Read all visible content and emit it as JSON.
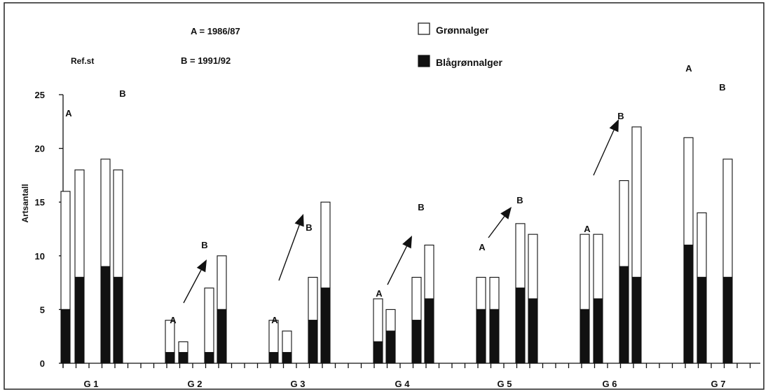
{
  "chart_data": {
    "type": "bar",
    "stacked": true,
    "ylabel": "Artsantall",
    "ylim": [
      0,
      25
    ],
    "yticks": [
      0,
      5,
      10,
      15,
      20,
      25
    ],
    "legend_position": "top-center",
    "series": [
      {
        "name": "Blågrønnalger",
        "color": "#111111"
      },
      {
        "name": "Grønnalger",
        "color": "#ffffff"
      }
    ],
    "annotations": {
      "period_a": "A = 1986/87",
      "period_b": "B = 1991/92",
      "ref_label": "Ref.st",
      "marker_a": "A",
      "marker_b": "B"
    },
    "groups": [
      {
        "label": "G 1",
        "bars": [
          {
            "blue_green": 5,
            "total": 16
          },
          {
            "blue_green": 8,
            "total": 18
          },
          {
            "blue_green": 9,
            "total": 19
          },
          {
            "blue_green": 8,
            "total": 18
          }
        ]
      },
      {
        "label": "G 2",
        "bars": [
          {
            "blue_green": 1,
            "total": 4
          },
          {
            "blue_green": 1,
            "total": 2
          },
          {
            "blue_green": 1,
            "total": 7
          },
          {
            "blue_green": 5,
            "total": 10
          }
        ]
      },
      {
        "label": "G 3",
        "bars": [
          {
            "blue_green": 1,
            "total": 4
          },
          {
            "blue_green": 1,
            "total": 3
          },
          {
            "blue_green": 4,
            "total": 8
          },
          {
            "blue_green": 7,
            "total": 15
          }
        ]
      },
      {
        "label": "G 4",
        "bars": [
          {
            "blue_green": 2,
            "total": 6
          },
          {
            "blue_green": 3,
            "total": 5
          },
          {
            "blue_green": 4,
            "total": 8
          },
          {
            "blue_green": 6,
            "total": 11
          }
        ]
      },
      {
        "label": "G 5",
        "bars": [
          {
            "blue_green": 5,
            "total": 8
          },
          {
            "blue_green": 5,
            "total": 8
          },
          {
            "blue_green": 7,
            "total": 13
          },
          {
            "blue_green": 6,
            "total": 12
          }
        ]
      },
      {
        "label": "G 6",
        "bars": [
          {
            "blue_green": 5,
            "total": 12
          },
          {
            "blue_green": 6,
            "total": 12
          },
          {
            "blue_green": 9,
            "total": 17
          },
          {
            "blue_green": 8,
            "total": 22
          }
        ]
      },
      {
        "label": "G 7",
        "bars": [
          {
            "blue_green": 11,
            "total": 21
          },
          {
            "blue_green": 8,
            "total": 14
          },
          {
            "blue_green": 8,
            "total": 19
          }
        ]
      }
    ]
  }
}
